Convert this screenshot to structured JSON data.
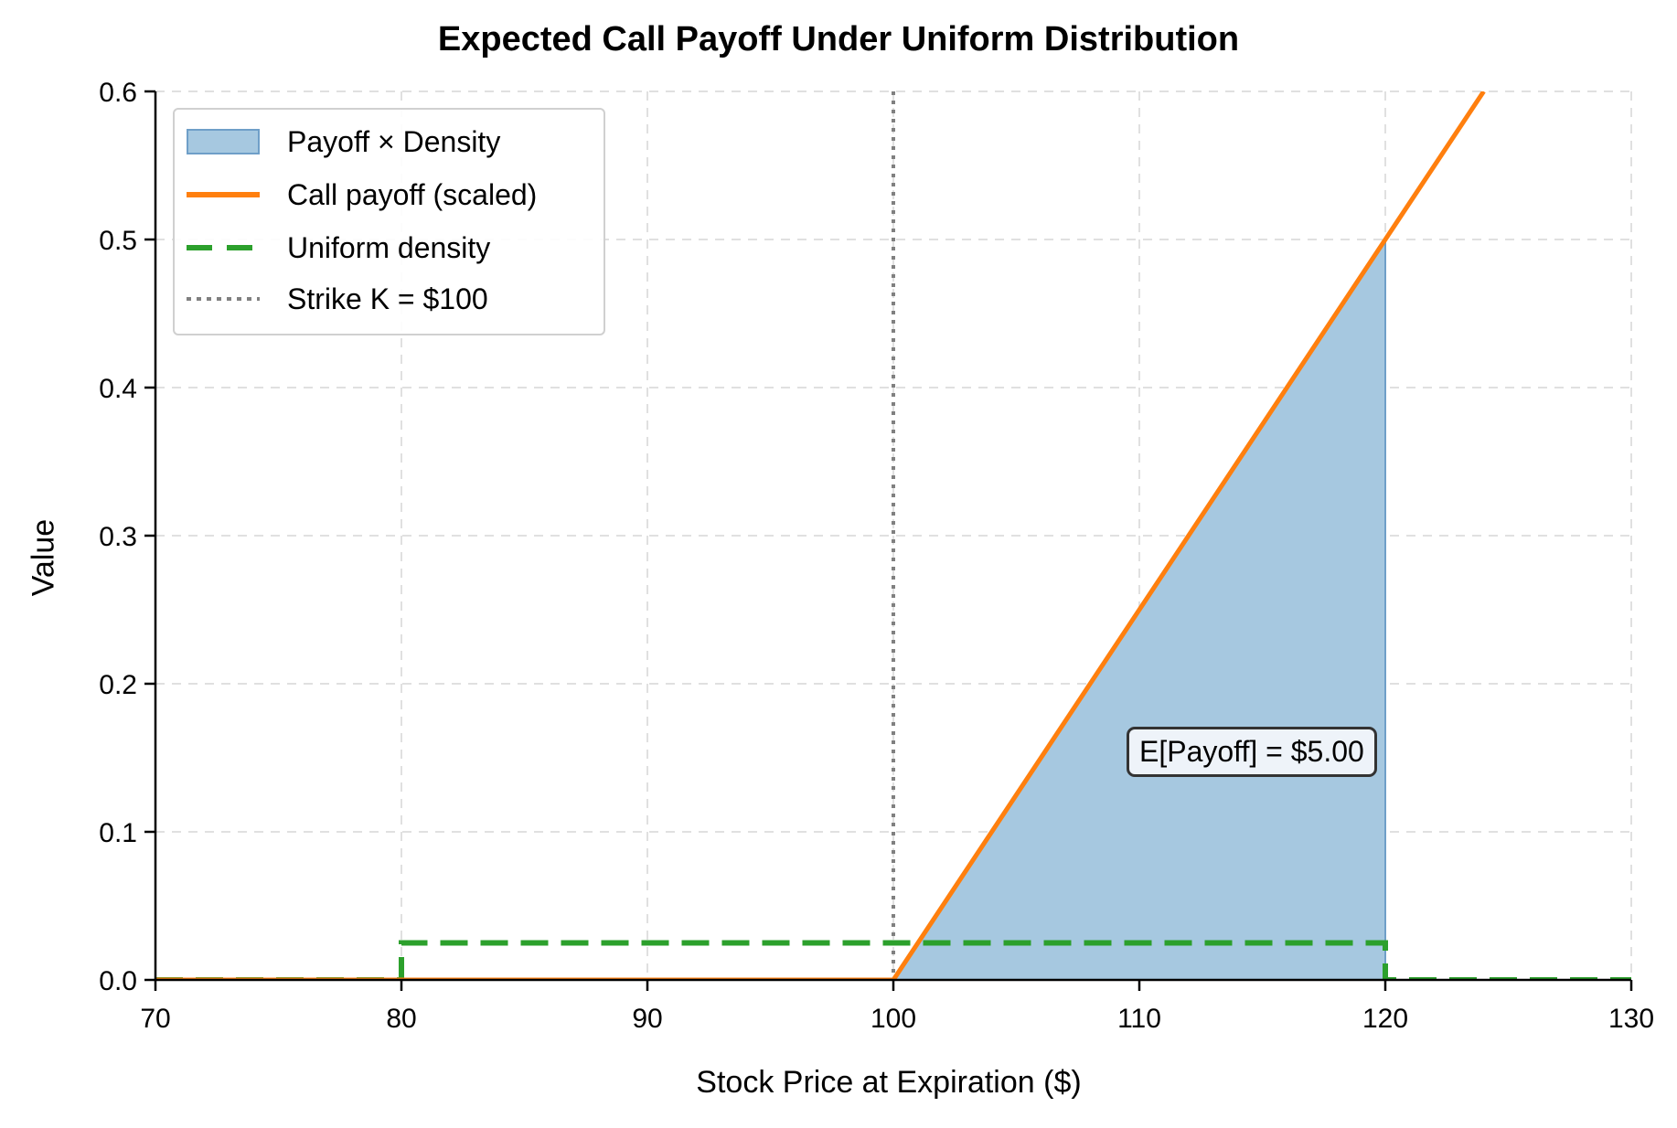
{
  "title": "Expected Call Payoff Under Uniform Distribution",
  "xlabel": "Stock Price at Expiration ($)",
  "ylabel": "Value",
  "legend": [
    {
      "label": "Payoff × Density",
      "style": "fill",
      "color": "#a6c8e0"
    },
    {
      "label": "Call payoff (scaled)",
      "style": "solid",
      "color": "#ff7f0e"
    },
    {
      "label": "Uniform density",
      "style": "dashed",
      "color": "#2ca02c"
    },
    {
      "label": "Strike K = $100",
      "style": "dotted",
      "color": "#808080"
    }
  ],
  "annotation": "E[Payoff] = $5.00",
  "colors": {
    "fill": "#a6c8e0",
    "fill_edge": "#6f9fc8",
    "payoff": "#ff7f0e",
    "density": "#2ca02c",
    "strike": "#808080",
    "grid": "#e0e0e0"
  },
  "chart_data": {
    "type": "line",
    "title": "Expected Call Payoff Under Uniform Distribution",
    "xlabel": "Stock Price at Expiration ($)",
    "ylabel": "Value",
    "xlim": [
      70,
      130
    ],
    "ylim": [
      0,
      0.6
    ],
    "xticks": [
      70,
      80,
      90,
      100,
      110,
      120,
      130
    ],
    "yticks": [
      0.0,
      0.1,
      0.2,
      0.3,
      0.4,
      0.5,
      0.6
    ],
    "grid": true,
    "legend_position": "upper left",
    "series": [
      {
        "name": "Call payoff (scaled)",
        "style": "solid",
        "x": [
          70,
          100,
          124
        ],
        "y": [
          0,
          0,
          0.6
        ]
      },
      {
        "name": "Uniform density",
        "style": "dashed",
        "x": [
          70,
          80,
          80,
          120,
          120,
          130
        ],
        "y": [
          0,
          0,
          0.025,
          0.025,
          0,
          0
        ]
      },
      {
        "name": "Payoff × Density",
        "style": "fill",
        "x": [
          100,
          120
        ],
        "y": [
          0,
          0.5
        ]
      },
      {
        "name": "Strike K = $100",
        "style": "vertical-dotted",
        "x": [
          100,
          100
        ],
        "y": [
          0,
          0.6
        ]
      }
    ],
    "annotations": [
      {
        "text": "E[Payoff] = $5.00",
        "x": 115,
        "y": 0.16
      }
    ]
  }
}
